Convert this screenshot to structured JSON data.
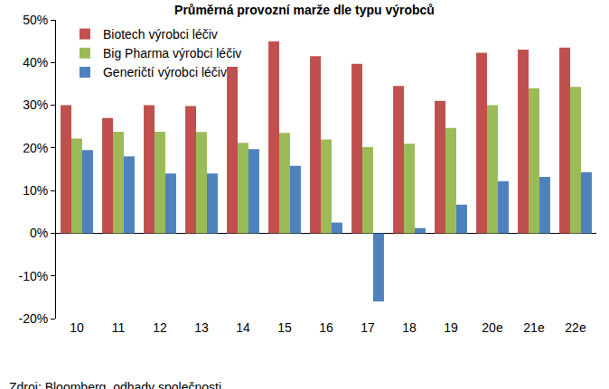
{
  "chart_data": {
    "type": "bar",
    "title": "Průměrná provozní marže dle typu výrobců",
    "source": "Zdroj: Bloomberg, odhady společnosti",
    "categories": [
      "10",
      "11",
      "12",
      "13",
      "14",
      "15",
      "16",
      "17",
      "18",
      "19",
      "20e",
      "21e",
      "22e"
    ],
    "series": [
      {
        "name": "Biotech výrobci léčiv",
        "color": "#C0504D",
        "values": [
          30,
          27,
          30,
          29.8,
          39,
          45,
          41.5,
          39.7,
          34.5,
          31,
          42.3,
          43,
          43.5
        ]
      },
      {
        "name": "Big Pharma výrobci léčiv",
        "color": "#9BBB59",
        "values": [
          22.2,
          23.8,
          23.8,
          23.7,
          21.2,
          23.5,
          22,
          20.2,
          21,
          24.7,
          30,
          34,
          34.3
        ]
      },
      {
        "name": "Generičtí výrobci léčiv",
        "color": "#4F81BD",
        "values": [
          19.5,
          18,
          14,
          14,
          19.7,
          15.8,
          2.5,
          -16,
          1.2,
          6.7,
          12.2,
          13.2,
          14.3
        ]
      }
    ],
    "ylim": [
      -20,
      50
    ],
    "yticks": [
      {
        "value": -20,
        "label": "-20%"
      },
      {
        "value": -10,
        "label": "-10%"
      },
      {
        "value": 0,
        "label": "0%"
      },
      {
        "value": 10,
        "label": "10%"
      },
      {
        "value": 20,
        "label": "20%"
      },
      {
        "value": 30,
        "label": "30%"
      },
      {
        "value": 40,
        "label": "40%"
      },
      {
        "value": 50,
        "label": "50%"
      }
    ],
    "grid": false,
    "legend": "top-left"
  }
}
